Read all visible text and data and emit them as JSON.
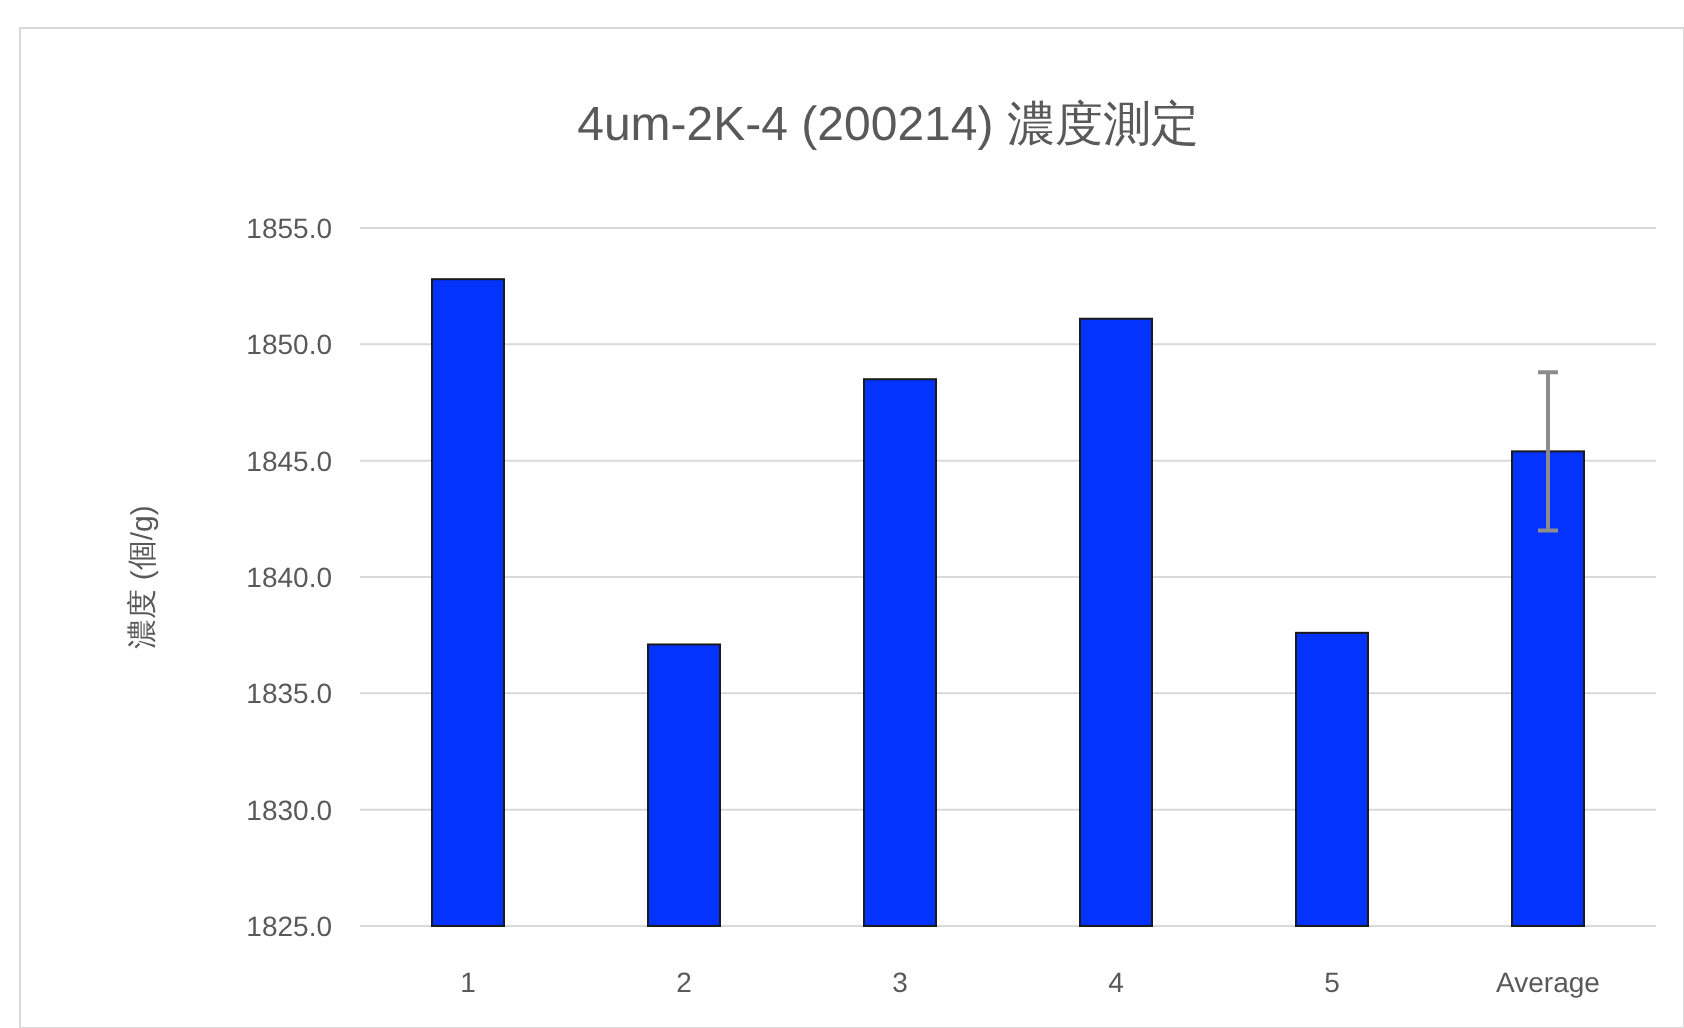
{
  "chart_data": {
    "type": "bar",
    "title": "4um-2K-4 (200214) 濃度測定",
    "ylabel": "濃度 (個/g)",
    "categories": [
      "1",
      "2",
      "3",
      "4",
      "5",
      "Average"
    ],
    "values": [
      1852.8,
      1837.1,
      1848.5,
      1851.1,
      1837.6,
      1845.4
    ],
    "errors": [
      null,
      null,
      null,
      null,
      null,
      3.4
    ],
    "color": "#0433ff",
    "ylim": [
      1825,
      1855
    ],
    "yticks": [
      {
        "value": 1825,
        "label": "1825.0"
      },
      {
        "value": 1830,
        "label": "1830.0"
      },
      {
        "value": 1835,
        "label": "1835.0"
      },
      {
        "value": 1840,
        "label": "1840.0"
      },
      {
        "value": 1845,
        "label": "1845.0"
      },
      {
        "value": 1850,
        "label": "1850.0"
      },
      {
        "value": 1855,
        "label": "1855.0"
      }
    ],
    "grid": "y"
  }
}
